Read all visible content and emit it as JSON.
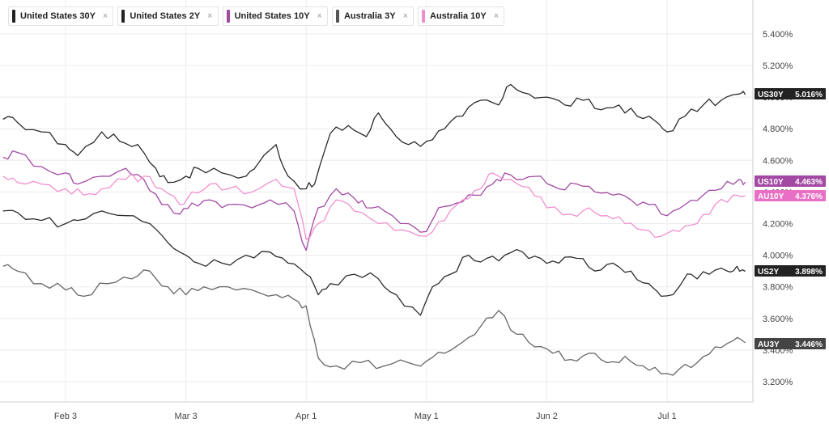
{
  "legend": [
    {
      "label": "United States 30Y",
      "color": "#222222"
    },
    {
      "label": "United States 2Y",
      "color": "#222222"
    },
    {
      "label": "United States 10Y",
      "color": "#a349a4"
    },
    {
      "label": "Australia 3Y",
      "color": "#555555"
    },
    {
      "label": "Australia 10Y",
      "color": "#f08fd0"
    }
  ],
  "close_glyph": "×",
  "chart_data": {
    "type": "line",
    "ylim": [
      3.1,
      5.55
    ],
    "y_ticks": [
      3.2,
      3.4,
      3.6,
      3.8,
      4.0,
      4.2,
      4.4,
      4.6,
      4.8,
      5.0,
      5.2,
      5.4
    ],
    "y_tick_labels": [
      "3.200%",
      "3.400%",
      "3.600%",
      "3.800%",
      "4.000%",
      "4.200%",
      "4.400%",
      "4.600%",
      "4.800%",
      "5.000%",
      "5.200%",
      "5.400%"
    ],
    "x_ticks": [
      {
        "label": "Feb 3",
        "t": 0
      },
      {
        "label": "Mar 3",
        "t": 1
      },
      {
        "label": "Apr 1",
        "t": 2
      },
      {
        "label": "May 1",
        "t": 3
      },
      {
        "label": "Jun 2",
        "t": 4
      },
      {
        "label": "Jul 1",
        "t": 5
      }
    ],
    "series": [
      {
        "name": "United States 30Y",
        "tag": "US30Y",
        "last": "5.016%",
        "color": "#2b2b2b",
        "tag_color": "#222222",
        "points": [
          [
            -0.52,
            4.86
          ],
          [
            -0.4,
            4.84
          ],
          [
            -0.2,
            4.78
          ],
          [
            0,
            4.7
          ],
          [
            0.1,
            4.63
          ],
          [
            0.3,
            4.78
          ],
          [
            0.45,
            4.72
          ],
          [
            0.6,
            4.7
          ],
          [
            0.75,
            4.55
          ],
          [
            0.85,
            4.46
          ],
          [
            1.0,
            4.5
          ],
          [
            1.1,
            4.55
          ],
          [
            1.3,
            4.52
          ],
          [
            1.5,
            4.5
          ],
          [
            1.6,
            4.58
          ],
          [
            1.75,
            4.7
          ],
          [
            1.85,
            4.5
          ],
          [
            2.0,
            4.42
          ],
          [
            2.07,
            4.45
          ],
          [
            2.2,
            4.77
          ],
          [
            2.35,
            4.82
          ],
          [
            2.5,
            4.75
          ],
          [
            2.6,
            4.9
          ],
          [
            2.7,
            4.8
          ],
          [
            2.85,
            4.7
          ],
          [
            3.0,
            4.72
          ],
          [
            3.15,
            4.8
          ],
          [
            3.3,
            4.88
          ],
          [
            3.45,
            4.98
          ],
          [
            3.6,
            4.95
          ],
          [
            3.7,
            5.08
          ],
          [
            3.85,
            5.02
          ],
          [
            4.0,
            5.0
          ],
          [
            4.15,
            4.95
          ],
          [
            4.3,
            4.98
          ],
          [
            4.45,
            4.92
          ],
          [
            4.6,
            4.95
          ],
          [
            4.75,
            4.88
          ],
          [
            4.9,
            4.85
          ],
          [
            5.0,
            4.78
          ],
          [
            5.15,
            4.88
          ],
          [
            5.3,
            4.95
          ],
          [
            5.45,
            4.98
          ],
          [
            5.6,
            5.02
          ],
          [
            5.65,
            5.016
          ]
        ]
      },
      {
        "name": "United States 10Y",
        "tag": "US10Y",
        "last": "4.463%",
        "color": "#a349a4",
        "tag_color": "#a349a4",
        "points": [
          [
            -0.52,
            4.62
          ],
          [
            -0.4,
            4.65
          ],
          [
            -0.2,
            4.56
          ],
          [
            0,
            4.52
          ],
          [
            0.1,
            4.45
          ],
          [
            0.3,
            4.5
          ],
          [
            0.5,
            4.55
          ],
          [
            0.65,
            4.48
          ],
          [
            0.8,
            4.32
          ],
          [
            0.95,
            4.26
          ],
          [
            1.05,
            4.33
          ],
          [
            1.2,
            4.35
          ],
          [
            1.35,
            4.32
          ],
          [
            1.55,
            4.3
          ],
          [
            1.7,
            4.35
          ],
          [
            1.9,
            4.28
          ],
          [
            2.0,
            4.03
          ],
          [
            2.1,
            4.3
          ],
          [
            2.25,
            4.42
          ],
          [
            2.4,
            4.36
          ],
          [
            2.5,
            4.3
          ],
          [
            2.65,
            4.28
          ],
          [
            2.85,
            4.2
          ],
          [
            3.0,
            4.15
          ],
          [
            3.1,
            4.3
          ],
          [
            3.25,
            4.33
          ],
          [
            3.4,
            4.38
          ],
          [
            3.55,
            4.45
          ],
          [
            3.65,
            4.52
          ],
          [
            3.8,
            4.48
          ],
          [
            3.95,
            4.5
          ],
          [
            4.1,
            4.42
          ],
          [
            4.25,
            4.45
          ],
          [
            4.4,
            4.4
          ],
          [
            4.55,
            4.38
          ],
          [
            4.7,
            4.35
          ],
          [
            4.85,
            4.32
          ],
          [
            5.0,
            4.25
          ],
          [
            5.15,
            4.32
          ],
          [
            5.3,
            4.38
          ],
          [
            5.45,
            4.42
          ],
          [
            5.6,
            4.48
          ],
          [
            5.65,
            4.463
          ]
        ]
      },
      {
        "name": "Australia 10Y",
        "tag": "AU10Y",
        "last": "4.376%",
        "color": "#f08fd0",
        "tag_color": "#e86fc4",
        "points": [
          [
            -0.52,
            4.5
          ],
          [
            -0.4,
            4.46
          ],
          [
            -0.2,
            4.45
          ],
          [
            0,
            4.42
          ],
          [
            0.15,
            4.38
          ],
          [
            0.3,
            4.42
          ],
          [
            0.5,
            4.48
          ],
          [
            0.65,
            4.5
          ],
          [
            0.8,
            4.42
          ],
          [
            0.95,
            4.32
          ],
          [
            1.05,
            4.4
          ],
          [
            1.2,
            4.45
          ],
          [
            1.35,
            4.42
          ],
          [
            1.55,
            4.4
          ],
          [
            1.75,
            4.48
          ],
          [
            1.9,
            4.42
          ],
          [
            2.0,
            4.1
          ],
          [
            2.1,
            4.2
          ],
          [
            2.25,
            4.35
          ],
          [
            2.4,
            4.28
          ],
          [
            2.6,
            4.2
          ],
          [
            2.8,
            4.16
          ],
          [
            3.0,
            4.12
          ],
          [
            3.15,
            4.22
          ],
          [
            3.3,
            4.35
          ],
          [
            3.45,
            4.42
          ],
          [
            3.55,
            4.52
          ],
          [
            3.7,
            4.48
          ],
          [
            3.85,
            4.43
          ],
          [
            4.0,
            4.3
          ],
          [
            4.2,
            4.26
          ],
          [
            4.35,
            4.3
          ],
          [
            4.5,
            4.25
          ],
          [
            4.65,
            4.2
          ],
          [
            4.8,
            4.16
          ],
          [
            4.95,
            4.12
          ],
          [
            5.1,
            4.15
          ],
          [
            5.25,
            4.2
          ],
          [
            5.4,
            4.32
          ],
          [
            5.55,
            4.38
          ],
          [
            5.65,
            4.376
          ]
        ]
      },
      {
        "name": "United States 2Y",
        "tag": "US2Y",
        "last": "3.898%",
        "color": "#2b2b2b",
        "tag_color": "#222222",
        "points": [
          [
            -0.52,
            4.28
          ],
          [
            -0.4,
            4.27
          ],
          [
            -0.2,
            4.22
          ],
          [
            0,
            4.2
          ],
          [
            0.1,
            4.22
          ],
          [
            0.3,
            4.28
          ],
          [
            0.5,
            4.25
          ],
          [
            0.7,
            4.2
          ],
          [
            0.85,
            4.08
          ],
          [
            1.0,
            4.0
          ],
          [
            1.1,
            3.95
          ],
          [
            1.3,
            3.95
          ],
          [
            1.5,
            4.0
          ],
          [
            1.7,
            4.02
          ],
          [
            1.85,
            3.95
          ],
          [
            2.0,
            3.88
          ],
          [
            2.1,
            3.75
          ],
          [
            2.2,
            3.82
          ],
          [
            2.4,
            3.88
          ],
          [
            2.6,
            3.85
          ],
          [
            2.75,
            3.75
          ],
          [
            2.95,
            3.62
          ],
          [
            3.05,
            3.8
          ],
          [
            3.2,
            3.88
          ],
          [
            3.35,
            4.0
          ],
          [
            3.5,
            3.98
          ],
          [
            3.65,
            4.0
          ],
          [
            3.8,
            4.02
          ],
          [
            3.95,
            3.98
          ],
          [
            4.1,
            3.95
          ],
          [
            4.25,
            3.98
          ],
          [
            4.4,
            3.9
          ],
          [
            4.55,
            3.95
          ],
          [
            4.7,
            3.9
          ],
          [
            4.85,
            3.82
          ],
          [
            4.95,
            3.74
          ],
          [
            5.1,
            3.8
          ],
          [
            5.2,
            3.88
          ],
          [
            5.35,
            3.88
          ],
          [
            5.5,
            3.9
          ],
          [
            5.58,
            3.93
          ],
          [
            5.65,
            3.898
          ]
        ]
      },
      {
        "name": "Australia 3Y",
        "tag": "AU3Y",
        "last": "3.446%",
        "color": "#666666",
        "tag_color": "#444444",
        "points": [
          [
            -0.52,
            3.93
          ],
          [
            -0.4,
            3.9
          ],
          [
            -0.2,
            3.82
          ],
          [
            0,
            3.78
          ],
          [
            0.15,
            3.74
          ],
          [
            0.35,
            3.82
          ],
          [
            0.55,
            3.85
          ],
          [
            0.7,
            3.9
          ],
          [
            0.85,
            3.8
          ],
          [
            1.0,
            3.75
          ],
          [
            1.15,
            3.8
          ],
          [
            1.35,
            3.8
          ],
          [
            1.55,
            3.78
          ],
          [
            1.75,
            3.75
          ],
          [
            1.9,
            3.72
          ],
          [
            2.0,
            3.68
          ],
          [
            2.1,
            3.35
          ],
          [
            2.25,
            3.3
          ],
          [
            2.45,
            3.32
          ],
          [
            2.65,
            3.3
          ],
          [
            2.85,
            3.32
          ],
          [
            3.0,
            3.33
          ],
          [
            3.15,
            3.38
          ],
          [
            3.3,
            3.45
          ],
          [
            3.45,
            3.55
          ],
          [
            3.6,
            3.65
          ],
          [
            3.75,
            3.5
          ],
          [
            3.9,
            3.42
          ],
          [
            4.05,
            3.38
          ],
          [
            4.2,
            3.34
          ],
          [
            4.35,
            3.38
          ],
          [
            4.5,
            3.32
          ],
          [
            4.65,
            3.36
          ],
          [
            4.8,
            3.3
          ],
          [
            4.95,
            3.25
          ],
          [
            5.1,
            3.28
          ],
          [
            5.25,
            3.32
          ],
          [
            5.4,
            3.42
          ],
          [
            5.55,
            3.46
          ],
          [
            5.65,
            3.446
          ]
        ]
      }
    ]
  }
}
